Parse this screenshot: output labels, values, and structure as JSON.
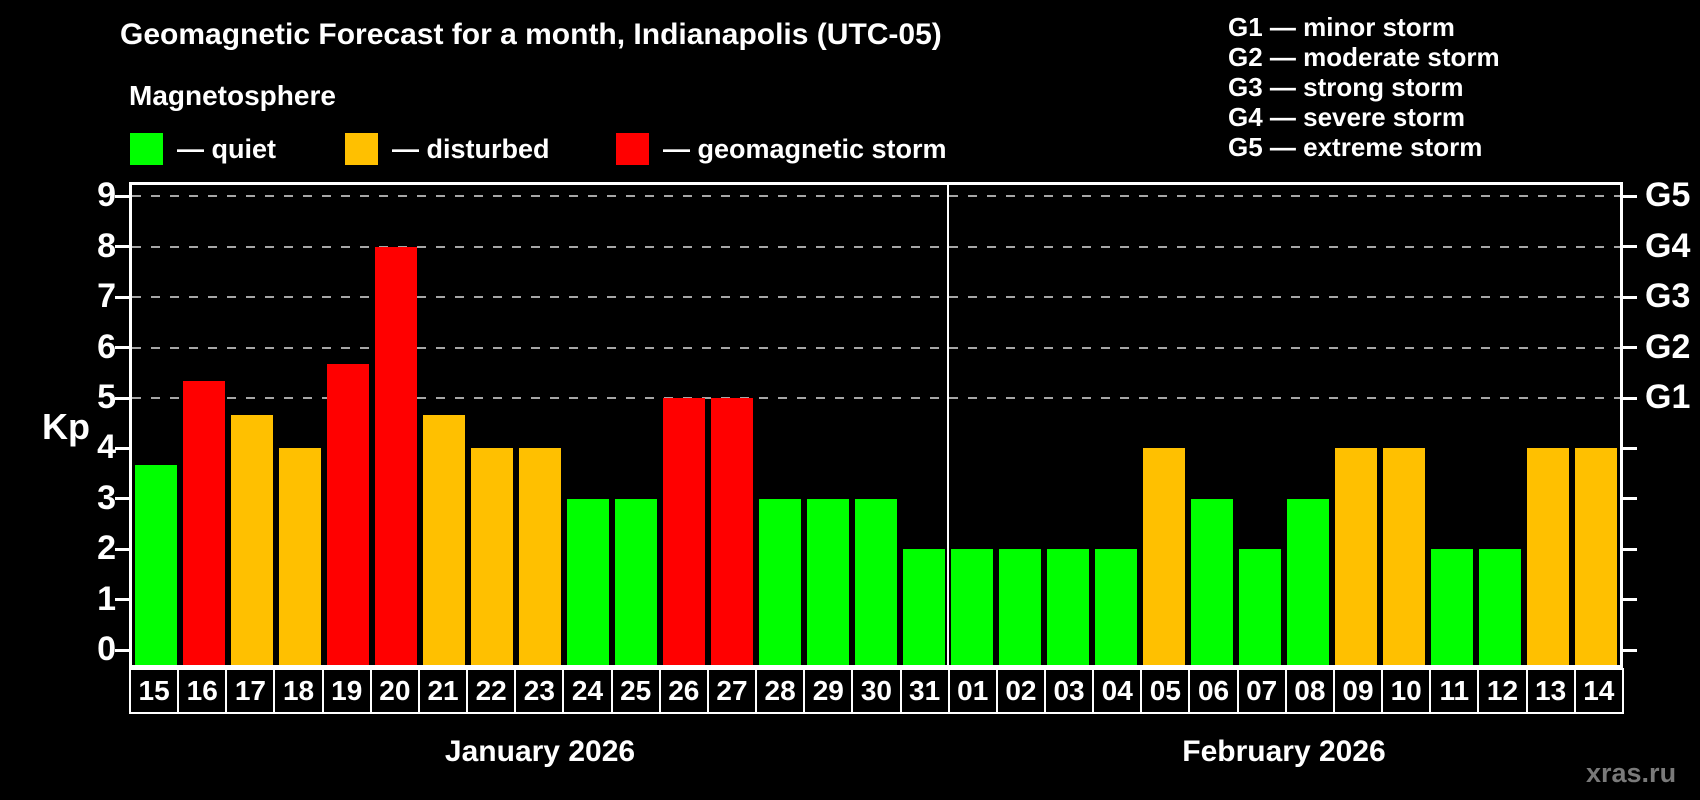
{
  "header": {
    "title": "Geomagnetic Forecast for a month, Indianapolis (UTC-05)",
    "subtitle": "Magnetosphere"
  },
  "legend": {
    "items": [
      {
        "key": "quiet",
        "label": "— quiet"
      },
      {
        "key": "disturbed",
        "label": "— disturbed"
      },
      {
        "key": "storm",
        "label": "— geomagnetic storm"
      }
    ]
  },
  "storm_scale": [
    "G1 — minor storm",
    "G2 — moderate storm",
    "G3 — strong storm",
    "G4 — severe storm",
    "G5 — extreme storm"
  ],
  "colors": {
    "quiet": "#00ff00",
    "disturbed": "#ffc000",
    "storm": "#ff0000",
    "axis": "#ffffff",
    "grid": "#a6a6a6",
    "background": "#000000",
    "watermark": "#7a7a7a"
  },
  "axis": {
    "ylabel": "Kp",
    "yticks": [
      0,
      1,
      2,
      3,
      4,
      5,
      6,
      7,
      8,
      9
    ],
    "right_labels": [
      {
        "value": 5,
        "label": "G1"
      },
      {
        "value": 6,
        "label": "G2"
      },
      {
        "value": 7,
        "label": "G3"
      },
      {
        "value": 8,
        "label": "G4"
      },
      {
        "value": 9,
        "label": "G5"
      }
    ]
  },
  "watermark": {
    "text": "xras.ru"
  },
  "chart_data": {
    "type": "bar",
    "title": "Geomagnetic Forecast for a month, Indianapolis (UTC-05)",
    "ylabel": "Kp",
    "ylim": [
      0,
      9
    ],
    "gridlines": [
      5,
      6,
      7,
      8,
      9
    ],
    "legend_position": "top-left",
    "months": [
      {
        "label": "January 2026",
        "count": 17
      },
      {
        "label": "February 2026",
        "count": 14
      }
    ],
    "days": [
      {
        "date": "15",
        "kp": 3.67,
        "condition": "quiet"
      },
      {
        "date": "16",
        "kp": 5.33,
        "condition": "storm"
      },
      {
        "date": "17",
        "kp": 4.67,
        "condition": "disturbed"
      },
      {
        "date": "18",
        "kp": 4.0,
        "condition": "disturbed"
      },
      {
        "date": "19",
        "kp": 5.67,
        "condition": "storm"
      },
      {
        "date": "20",
        "kp": 8.0,
        "condition": "storm"
      },
      {
        "date": "21",
        "kp": 4.67,
        "condition": "disturbed"
      },
      {
        "date": "22",
        "kp": 4.0,
        "condition": "disturbed"
      },
      {
        "date": "23",
        "kp": 4.0,
        "condition": "disturbed"
      },
      {
        "date": "24",
        "kp": 3.0,
        "condition": "quiet"
      },
      {
        "date": "25",
        "kp": 3.0,
        "condition": "quiet"
      },
      {
        "date": "26",
        "kp": 5.0,
        "condition": "storm"
      },
      {
        "date": "27",
        "kp": 5.0,
        "condition": "storm"
      },
      {
        "date": "28",
        "kp": 3.0,
        "condition": "quiet"
      },
      {
        "date": "29",
        "kp": 3.0,
        "condition": "quiet"
      },
      {
        "date": "30",
        "kp": 3.0,
        "condition": "quiet"
      },
      {
        "date": "31",
        "kp": 2.0,
        "condition": "quiet"
      },
      {
        "date": "01",
        "kp": 2.0,
        "condition": "quiet"
      },
      {
        "date": "02",
        "kp": 2.0,
        "condition": "quiet"
      },
      {
        "date": "03",
        "kp": 2.0,
        "condition": "quiet"
      },
      {
        "date": "04",
        "kp": 2.0,
        "condition": "quiet"
      },
      {
        "date": "05",
        "kp": 4.0,
        "condition": "disturbed"
      },
      {
        "date": "06",
        "kp": 3.0,
        "condition": "quiet"
      },
      {
        "date": "07",
        "kp": 2.0,
        "condition": "quiet"
      },
      {
        "date": "08",
        "kp": 3.0,
        "condition": "quiet"
      },
      {
        "date": "09",
        "kp": 4.0,
        "condition": "disturbed"
      },
      {
        "date": "10",
        "kp": 4.0,
        "condition": "disturbed"
      },
      {
        "date": "11",
        "kp": 2.0,
        "condition": "quiet"
      },
      {
        "date": "12",
        "kp": 2.0,
        "condition": "quiet"
      },
      {
        "date": "13",
        "kp": 4.0,
        "condition": "disturbed"
      },
      {
        "date": "14",
        "kp": 4.0,
        "condition": "disturbed"
      }
    ]
  }
}
